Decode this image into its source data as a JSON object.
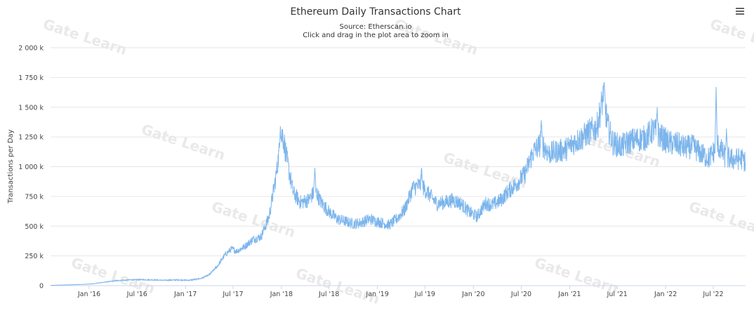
{
  "chart_data": {
    "type": "line",
    "title": "Ethereum Daily Transactions Chart",
    "subtitle_source": "Source: Etherscan.io",
    "subtitle_hint": "Click and drag in the plot area to zoom in",
    "ylabel": "Transactions per Day",
    "xlabel": "",
    "ylim": [
      0,
      2000000
    ],
    "xlim": [
      "2015-08-07",
      "2022-11-01"
    ],
    "y_ticks": [
      {
        "value": 0,
        "label": "0"
      },
      {
        "value": 250000,
        "label": "250 k"
      },
      {
        "value": 500000,
        "label": "500 k"
      },
      {
        "value": 750000,
        "label": "750 k"
      },
      {
        "value": 1000000,
        "label": "1 000 k"
      },
      {
        "value": 1250000,
        "label": "1 250 k"
      },
      {
        "value": 1500000,
        "label": "1 500 k"
      },
      {
        "value": 1750000,
        "label": "1 750 k"
      },
      {
        "value": 2000000,
        "label": "2 000 k"
      }
    ],
    "x_ticks": [
      {
        "date": "2016-01-01",
        "label": "Jan '16"
      },
      {
        "date": "2016-07-01",
        "label": "Jul '16"
      },
      {
        "date": "2017-01-01",
        "label": "Jan '17"
      },
      {
        "date": "2017-07-01",
        "label": "Jul '17"
      },
      {
        "date": "2018-01-01",
        "label": "Jan '18"
      },
      {
        "date": "2018-07-01",
        "label": "Jul '18"
      },
      {
        "date": "2019-01-01",
        "label": "Jan '19"
      },
      {
        "date": "2019-07-01",
        "label": "Jul '19"
      },
      {
        "date": "2020-01-01",
        "label": "Jan '20"
      },
      {
        "date": "2020-07-01",
        "label": "Jul '20"
      },
      {
        "date": "2021-01-01",
        "label": "Jan '21"
      },
      {
        "date": "2021-07-01",
        "label": "Jul '21"
      },
      {
        "date": "2022-01-01",
        "label": "Jan '22"
      },
      {
        "date": "2022-07-01",
        "label": "Jul '22"
      }
    ],
    "grid": "horizontal",
    "legend": "none",
    "series_color": "#7cb5ec",
    "series": [
      {
        "points": [
          [
            "2015-08-07",
            2000
          ],
          [
            "2015-10-01",
            6000
          ],
          [
            "2015-12-01",
            10000
          ],
          [
            "2016-01-15",
            15000
          ],
          [
            "2016-03-01",
            30000
          ],
          [
            "2016-04-15",
            42000
          ],
          [
            "2016-06-01",
            48000
          ],
          [
            "2016-07-15",
            50000
          ],
          [
            "2016-09-01",
            48000
          ],
          [
            "2016-10-15",
            45000
          ],
          [
            "2016-12-01",
            48000
          ],
          [
            "2017-01-15",
            45000
          ],
          [
            "2017-03-01",
            60000
          ],
          [
            "2017-04-01",
            90000
          ],
          [
            "2017-05-01",
            160000
          ],
          [
            "2017-06-01",
            260000
          ],
          [
            "2017-06-25",
            310000
          ],
          [
            "2017-07-15",
            290000
          ],
          [
            "2017-08-15",
            330000
          ],
          [
            "2017-09-15",
            390000
          ],
          [
            "2017-10-15",
            410000
          ],
          [
            "2017-11-15",
            580000
          ],
          [
            "2017-12-10",
            900000
          ],
          [
            "2017-12-25",
            1150000
          ],
          [
            "2018-01-05",
            1280000
          ],
          [
            "2018-01-25",
            1020000
          ],
          [
            "2018-02-15",
            780000
          ],
          [
            "2018-03-15",
            700000
          ],
          [
            "2018-04-15",
            720000
          ],
          [
            "2018-05-10",
            800000
          ],
          [
            "2018-06-01",
            700000
          ],
          [
            "2018-07-01",
            620000
          ],
          [
            "2018-08-01",
            560000
          ],
          [
            "2018-09-01",
            540000
          ],
          [
            "2018-10-01",
            520000
          ],
          [
            "2018-11-01",
            530000
          ],
          [
            "2018-12-01",
            560000
          ],
          [
            "2019-01-15",
            530000
          ],
          [
            "2019-02-15",
            510000
          ],
          [
            "2019-03-15",
            560000
          ],
          [
            "2019-04-15",
            640000
          ],
          [
            "2019-05-15",
            820000
          ],
          [
            "2019-06-15",
            850000
          ],
          [
            "2019-07-15",
            770000
          ],
          [
            "2019-08-15",
            690000
          ],
          [
            "2019-09-15",
            700000
          ],
          [
            "2019-10-15",
            720000
          ],
          [
            "2019-11-15",
            690000
          ],
          [
            "2019-12-15",
            620000
          ],
          [
            "2020-01-15",
            580000
          ],
          [
            "2020-02-15",
            690000
          ],
          [
            "2020-03-15",
            680000
          ],
          [
            "2020-04-15",
            720000
          ],
          [
            "2020-05-15",
            800000
          ],
          [
            "2020-06-15",
            860000
          ],
          [
            "2020-07-15",
            940000
          ],
          [
            "2020-08-15",
            1120000
          ],
          [
            "2020-09-15",
            1200000
          ],
          [
            "2020-10-15",
            1110000
          ],
          [
            "2020-11-15",
            1130000
          ],
          [
            "2020-12-15",
            1140000
          ],
          [
            "2021-01-15",
            1200000
          ],
          [
            "2021-02-15",
            1240000
          ],
          [
            "2021-03-15",
            1290000
          ],
          [
            "2021-04-15",
            1330000
          ],
          [
            "2021-05-10",
            1600000
          ],
          [
            "2021-05-25",
            1350000
          ],
          [
            "2021-06-15",
            1200000
          ],
          [
            "2021-07-15",
            1170000
          ],
          [
            "2021-08-15",
            1210000
          ],
          [
            "2021-09-15",
            1230000
          ],
          [
            "2021-10-15",
            1240000
          ],
          [
            "2021-11-15",
            1310000
          ],
          [
            "2021-12-15",
            1250000
          ],
          [
            "2022-01-15",
            1200000
          ],
          [
            "2022-02-15",
            1190000
          ],
          [
            "2022-03-15",
            1160000
          ],
          [
            "2022-04-15",
            1170000
          ],
          [
            "2022-05-15",
            1110000
          ],
          [
            "2022-06-15",
            1070000
          ],
          [
            "2022-07-01",
            1120000
          ],
          [
            "2022-07-20",
            1180000
          ],
          [
            "2022-08-15",
            1080000
          ],
          [
            "2022-09-15",
            1060000
          ],
          [
            "2022-10-15",
            1070000
          ],
          [
            "2022-11-01",
            1040000
          ]
        ]
      }
    ],
    "spikes": [
      {
        "date": "2017-12-28",
        "value": 1340000
      },
      {
        "date": "2018-05-08",
        "value": 990000
      },
      {
        "date": "2019-06-18",
        "value": 990000
      },
      {
        "date": "2020-09-15",
        "value": 1390000
      },
      {
        "date": "2021-05-12",
        "value": 1710000
      },
      {
        "date": "2021-11-30",
        "value": 1500000
      },
      {
        "date": "2022-07-12",
        "value": 1670000
      },
      {
        "date": "2022-08-20",
        "value": 1320000
      }
    ]
  },
  "watermark": "Gate Learn",
  "menu_icon": "hamburger-menu-icon"
}
